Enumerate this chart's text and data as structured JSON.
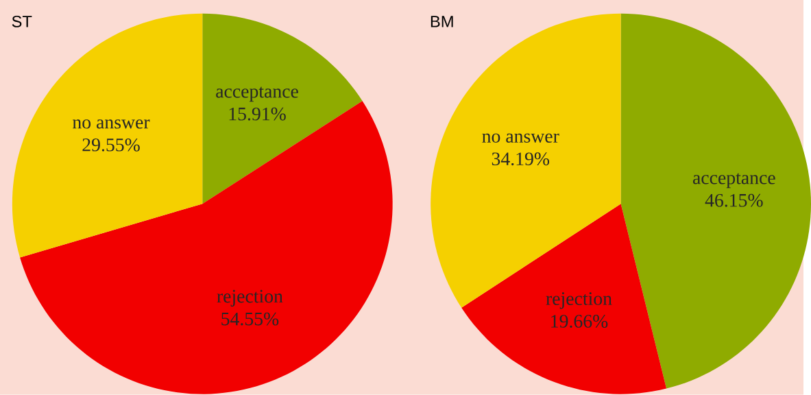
{
  "chart_data": [
    {
      "type": "pie",
      "title": "ST",
      "categories": [
        "acceptance",
        "rejection",
        "no answer"
      ],
      "values": [
        15.91,
        54.55,
        29.55
      ],
      "value_labels": [
        "15.91%",
        "54.55%",
        "29.55%"
      ],
      "colors": [
        "#8fab00",
        "#f20000",
        "#f5d000"
      ]
    },
    {
      "type": "pie",
      "title": "BM",
      "categories": [
        "acceptance",
        "rejection",
        "no answer"
      ],
      "values": [
        46.15,
        19.66,
        34.19
      ],
      "value_labels": [
        "46.15%",
        "19.66%",
        "34.19%"
      ],
      "colors": [
        "#8fab00",
        "#f20000",
        "#f5d000"
      ]
    }
  ]
}
